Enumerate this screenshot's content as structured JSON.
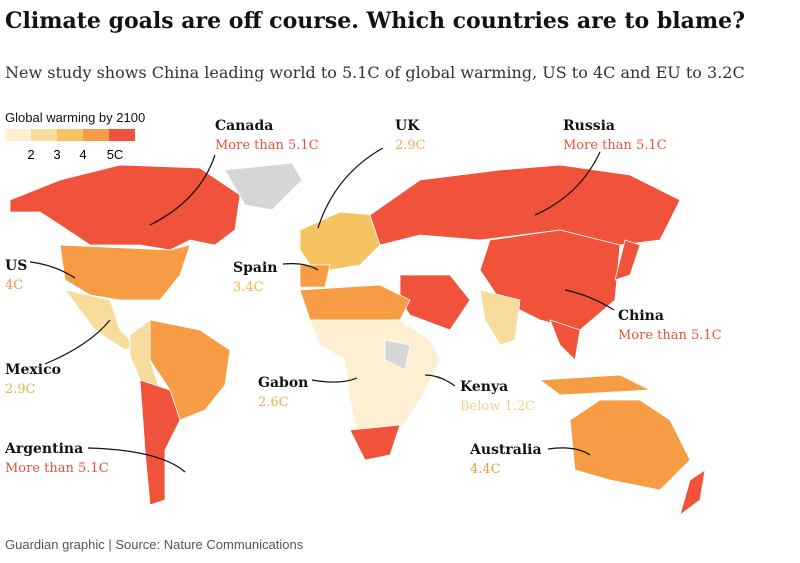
{
  "header": {
    "title": "Climate goals are off course. Which countries are to blame?",
    "subtitle": "New study shows China leading world to 5.1C of global warming, US to 4C and EU to 3.2C"
  },
  "legend": {
    "title": "Global warming by 2100",
    "ticks": [
      "2",
      "3",
      "4",
      "5C"
    ]
  },
  "labels": [
    {
      "name": "Canada",
      "value": "More than 5.1C"
    },
    {
      "name": "UK",
      "value": "2.9C"
    },
    {
      "name": "Russia",
      "value": "More than 5.1C"
    },
    {
      "name": "US",
      "value": "4C"
    },
    {
      "name": "Spain",
      "value": "3.4C"
    },
    {
      "name": "China",
      "value": "More than 5.1C"
    },
    {
      "name": "Mexico",
      "value": "2.9C"
    },
    {
      "name": "Gabon",
      "value": "2.6C"
    },
    {
      "name": "Kenya",
      "value": "Below 1.2C"
    },
    {
      "name": "Australia",
      "value": "4.4C"
    },
    {
      "name": "Argentina",
      "value": "More than 5.1C"
    }
  ],
  "footer": "Guardian graphic | Source: Nature Communications"
}
